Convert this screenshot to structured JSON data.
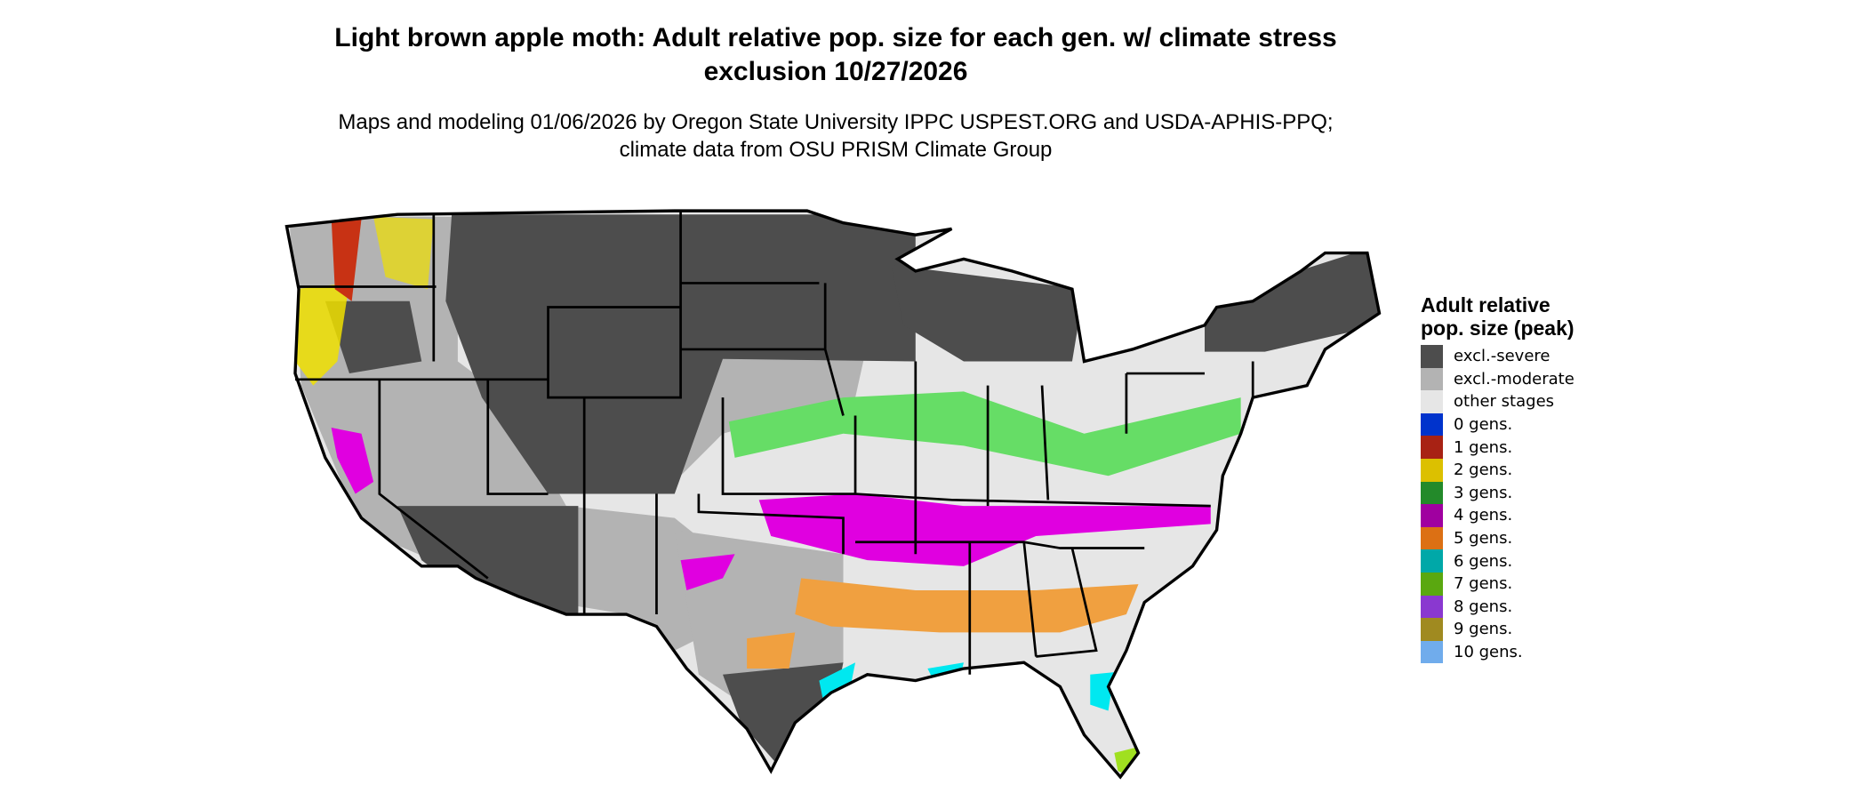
{
  "title": "Light brown apple moth: Adult relative pop. size for each gen. w/ climate stress exclusion 10/27/2026",
  "subtitle": "Maps and modeling 01/06/2026 by Oregon State University IPPC USPEST.ORG and USDA-APHIS-PPQ; climate data from OSU PRISM Climate Group",
  "legend": {
    "title": "Adult relative pop. size (peak)",
    "items": [
      {
        "label": "excl.-severe",
        "color": "#4d4d4d"
      },
      {
        "label": "excl.-moderate",
        "color": "#b3b3b3"
      },
      {
        "label": "other stages",
        "color": "#e6e6e6"
      },
      {
        "label": "0 gens.",
        "color": "#0033cc"
      },
      {
        "label": "1 gens.",
        "color": "#a82214"
      },
      {
        "label": "2 gens.",
        "color": "#dcc000"
      },
      {
        "label": "3 gens.",
        "color": "#238a2a"
      },
      {
        "label": "4 gens.",
        "color": "#a000a0"
      },
      {
        "label": "5 gens.",
        "color": "#dc7014"
      },
      {
        "label": "6 gens.",
        "color": "#00a8a8"
      },
      {
        "label": "7 gens.",
        "color": "#5aa810"
      },
      {
        "label": "8 gens.",
        "color": "#8a38d0"
      },
      {
        "label": "9 gens.",
        "color": "#a08a20"
      },
      {
        "label": "10 gens.",
        "color": "#70acec"
      }
    ]
  },
  "map_colors": {
    "severe": "#4d4d4d",
    "moderate": "#b3b3b3",
    "other": "#e6e6e6",
    "yellow": "#f0e000",
    "green": "#66dd66",
    "magenta": "#e000e0",
    "orange": "#f0a040",
    "cyan": "#00e8f0",
    "lime": "#a0e020",
    "red": "#c83214"
  }
}
